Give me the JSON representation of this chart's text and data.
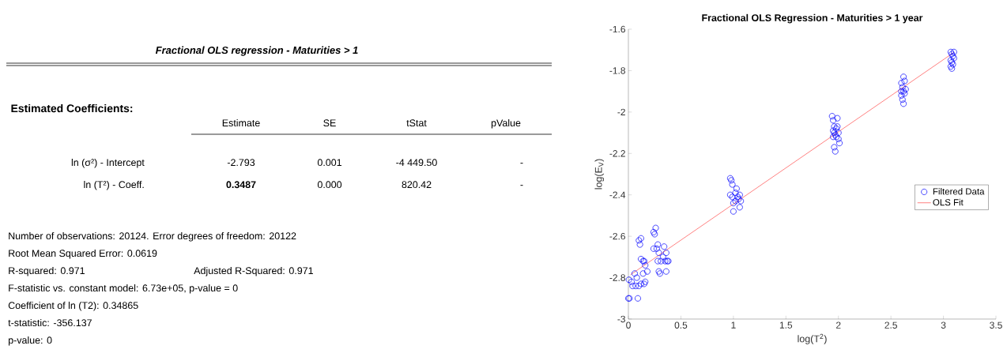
{
  "chart_data": [
    {
      "type": "other",
      "title": "Fractional OLS regression - Maturities > 1",
      "subtitle": "Estimated Coefficients:",
      "annotations": [
        "Estimate",
        "SE",
        "tStat",
        "pValue",
        "ln (σ²) - Intercept",
        "-2.793",
        "0.001",
        "-4 449.50",
        "-",
        "ln (T²) - Coeff.",
        "**0.3487**",
        "0.000",
        "820.42",
        "-",
        "Number of observations: 20124. Error degrees of freedom: 20122",
        "Root Mean Squared Error: 0.0619",
        "R-squared: 0.971",
        "Adjusted R-Squared: 0.971",
        "F-statistic vs. constant model: 6.73e+05, p-value = 0",
        "Coefficient of ln (T2): 0.34865",
        "t-statistic: -356.137",
        "p-value: 0"
      ]
    },
    {
      "type": "scatter",
      "title": "Fractional OLS Regression - Maturities > 1 year",
      "xlabel": "log(T$^{2}$)",
      "ylabel": "log(E$_{V}$)",
      "xlim": [
        0,
        3.5
      ],
      "ylim": [
        -3,
        -1.6
      ],
      "xticks": [
        0,
        0.5,
        1,
        1.5,
        2,
        2.5,
        3,
        3.5
      ],
      "yticks": [
        -3,
        -2.8,
        -2.6,
        -2.4,
        -2.2,
        -2,
        -1.8,
        -1.6
      ],
      "legend": "right",
      "series": [
        {
          "name": "Filtered Data",
          "color": "#0000ff",
          "marker": "circle",
          "x": [
            0,
            0.01,
            0.09,
            0.005,
            0.03,
            0.04,
            0.06,
            0.07,
            0.08,
            0.1,
            0.12,
            0.14,
            0.15,
            0.16,
            0.18,
            0.16,
            0.12,
            0.14,
            0.15,
            0.1,
            0.12,
            0.11,
            0.24,
            0.26,
            0.25,
            0.24,
            0.27,
            0.28,
            0.29,
            0.28,
            0.29,
            0.3,
            0.31,
            0.33,
            0.34,
            0.35,
            0.36,
            0.37,
            0.38,
            0.36,
            0.97,
            0.98,
            0.99,
            0.97,
            0.99,
            1.0,
            1.0,
            1.02,
            1.03,
            1.04,
            1.05,
            1.06,
            1.07,
            1.06,
            1.02,
            1.94,
            1.95,
            1.99,
            1.96,
            1.98,
            1.99,
            1.96,
            1.95,
            1.97,
            2.0,
            2.01,
            1.98,
            1.96,
            1.97,
            2.0,
            1.95,
            2.62,
            2.63,
            2.6,
            2.61,
            2.62,
            2.63,
            2.6,
            2.61,
            2.62,
            2.6,
            2.64,
            3.07,
            3.08,
            3.1,
            3.09,
            3.07,
            3.08,
            3.1,
            3.07,
            3.08,
            3.09
          ],
          "values": [
            -2.9,
            -2.9,
            -2.9,
            -2.81,
            -2.82,
            -2.84,
            -2.78,
            -2.84,
            -2.8,
            -2.84,
            -2.83,
            -2.78,
            -2.83,
            -2.82,
            -2.77,
            -2.74,
            -2.71,
            -2.72,
            -2.72,
            -2.62,
            -2.61,
            -2.64,
            -2.58,
            -2.56,
            -2.59,
            -2.66,
            -2.66,
            -2.64,
            -2.68,
            -2.72,
            -2.77,
            -2.78,
            -2.72,
            -2.7,
            -2.65,
            -2.72,
            -2.68,
            -2.72,
            -2.72,
            -2.77,
            -2.32,
            -2.33,
            -2.35,
            -2.4,
            -2.41,
            -2.44,
            -2.48,
            -2.39,
            -2.37,
            -2.41,
            -2.42,
            -2.4,
            -2.43,
            -2.46,
            -2.43,
            -2.02,
            -2.04,
            -2.03,
            -2.07,
            -2.08,
            -2.07,
            -2.1,
            -2.12,
            -2.11,
            -2.13,
            -2.15,
            -2.12,
            -2.17,
            -2.19,
            -2.1,
            -2.09,
            -1.83,
            -1.85,
            -1.86,
            -1.88,
            -1.9,
            -1.91,
            -1.92,
            -1.94,
            -1.96,
            -1.9,
            -1.89,
            -1.71,
            -1.72,
            -1.71,
            -1.73,
            -1.75,
            -1.76,
            -1.74,
            -1.78,
            -1.79,
            -1.77
          ]
        },
        {
          "name": "OLS Fit",
          "type": "line",
          "color": "#ff0000",
          "marker": "none",
          "x": [
            0.02,
            3.1
          ],
          "values": [
            -2.786,
            -1.712
          ]
        }
      ]
    }
  ]
}
